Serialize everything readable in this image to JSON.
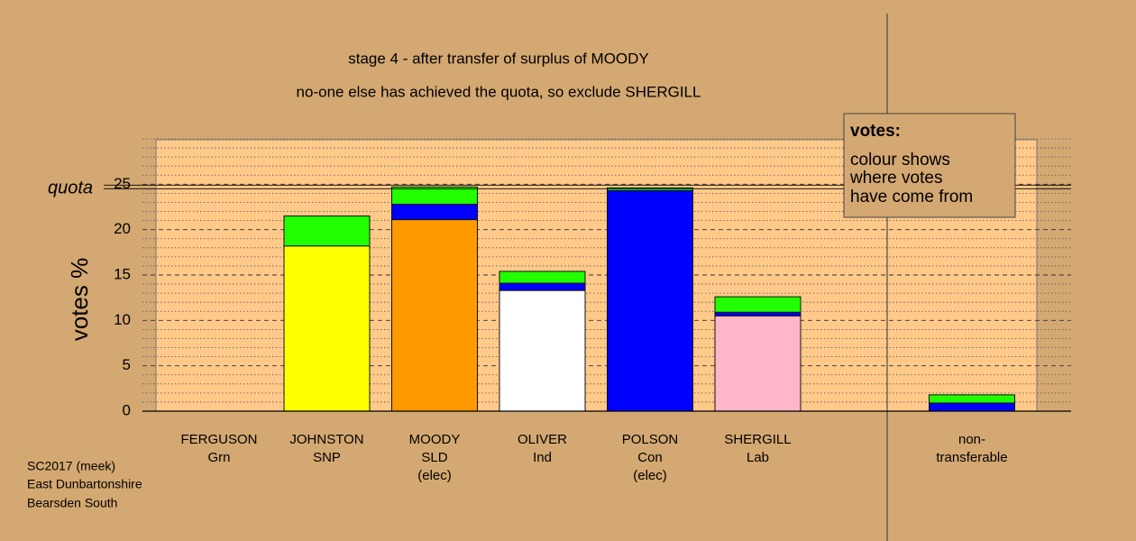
{
  "chart_data": {
    "type": "stacked-bar",
    "title": "stage 4 - after transfer of surplus of MOODY",
    "subtitle": "no-one else has achieved the quota, so exclude SHERGILL",
    "y_label": "votes %",
    "categories": [
      [
        "FERGUSON",
        "Grn"
      ],
      [
        "JOHNSTON",
        "SNP"
      ],
      [
        "MOODY",
        "SLD",
        "(elec)"
      ],
      [
        "OLIVER",
        "Ind"
      ],
      [
        "POLSON",
        "Con",
        "(elec)"
      ],
      [
        "SHERGILL",
        "Lab"
      ],
      [
        "non-",
        "transferable"
      ]
    ],
    "series": [
      {
        "colors": [
          "#00ff00",
          "#ffff00",
          "#ff9900",
          "#ffffff",
          "#0000ff",
          "#ffb6c8",
          "#888888"
        ],
        "values": [
          0,
          18.2,
          21.1,
          13.3,
          24.3,
          10.5,
          0
        ]
      },
      {
        "color": "#0000ff",
        "values": [
          0,
          0,
          1.7,
          0.8,
          0,
          0.4,
          0.9
        ]
      },
      {
        "color": "#22ff00",
        "values": [
          0,
          3.3,
          1.9,
          1.3,
          0.3,
          1.7,
          0.9
        ]
      }
    ],
    "ylim": [
      0,
      30
    ],
    "yticks": [
      0,
      5,
      10,
      15,
      20,
      25
    ],
    "minor_yticks": [
      1,
      2,
      3,
      4,
      6,
      7,
      8,
      9,
      11,
      12,
      13,
      14,
      16,
      17,
      18,
      19,
      21,
      22,
      23,
      24,
      26,
      27,
      28,
      29,
      30
    ],
    "grid": true,
    "quota": {
      "label": "quota",
      "value": 24.7
    },
    "legend_note": {
      "title": "votes:",
      "lines": [
        "colour shows",
        "where votes",
        "have come from"
      ]
    },
    "footer": [
      "SC2017 (meek)",
      "East Dunbartonshire",
      "Bearsden South"
    ]
  }
}
